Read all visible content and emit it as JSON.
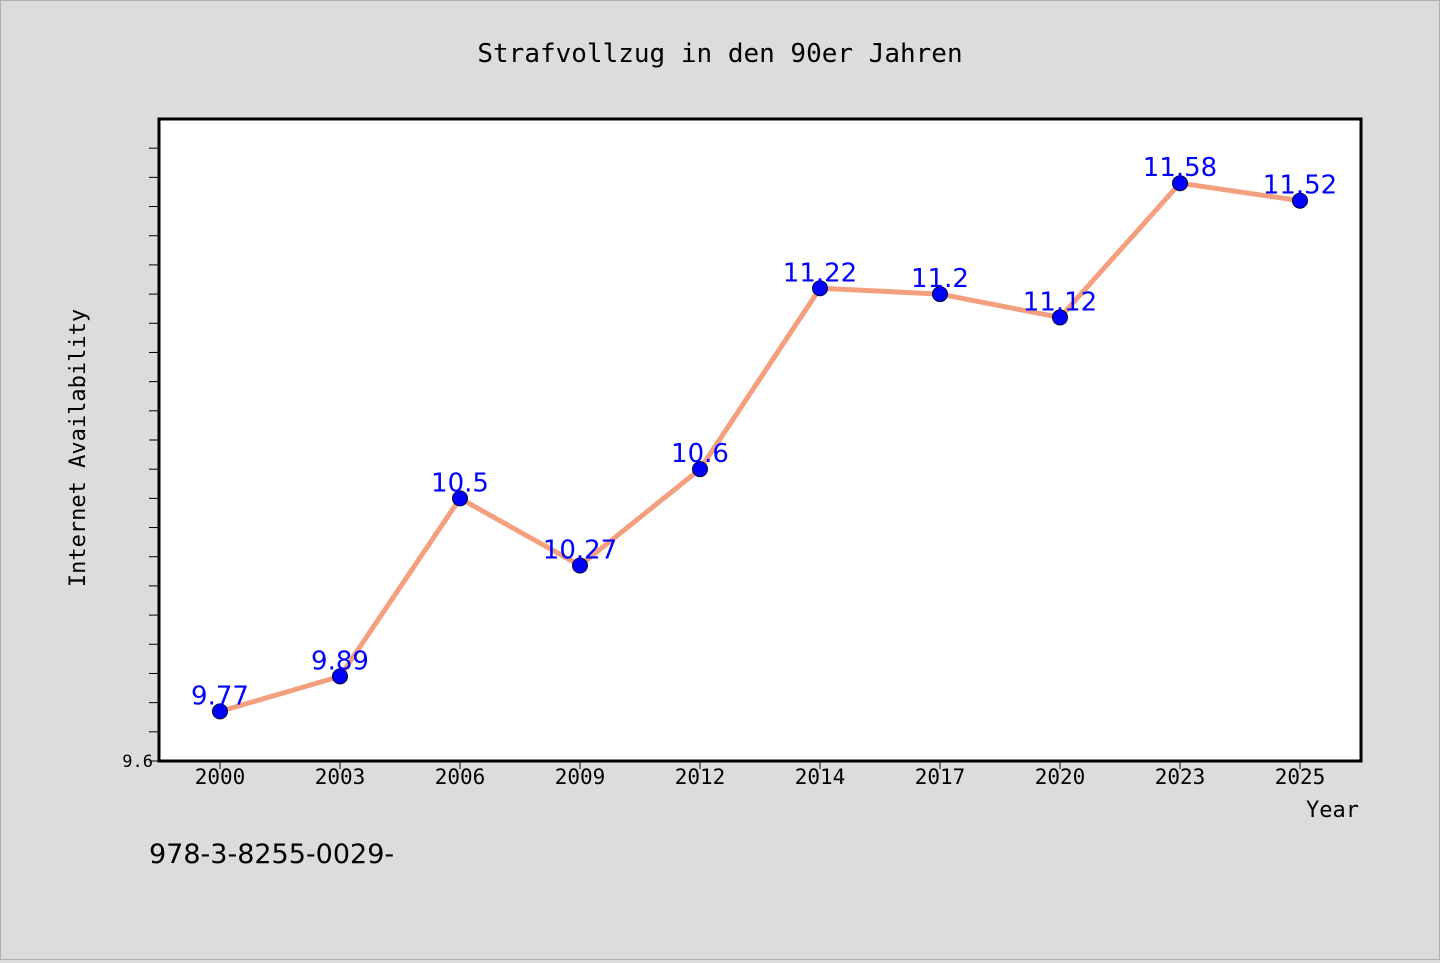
{
  "chart_data": {
    "type": "line",
    "title": "Strafvollzug in den 90er Jahren",
    "xlabel": "Year",
    "ylabel": "Internet Availability",
    "categories": [
      "2000",
      "2003",
      "2006",
      "2009",
      "2012",
      "2014",
      "2017",
      "2020",
      "2023",
      "2025"
    ],
    "series": [
      {
        "values": [
          9.77,
          9.89,
          10.5,
          10.27,
          10.6,
          11.22,
          11.2,
          11.12,
          11.58,
          11.52
        ],
        "labels": [
          "9.77",
          "9.89",
          "10.5",
          "10.27",
          "10.6",
          "11.22",
          "11.2",
          "11.12",
          "11.58",
          "11.52"
        ],
        "line_color": "#f4a07e",
        "marker_color": "#0000ff"
      }
    ],
    "ylim": [
      9.6,
      11.8
    ],
    "y_min_label": "9.6",
    "grid": false,
    "legend": "none"
  },
  "footer_text": "978-3-8255-0029-"
}
